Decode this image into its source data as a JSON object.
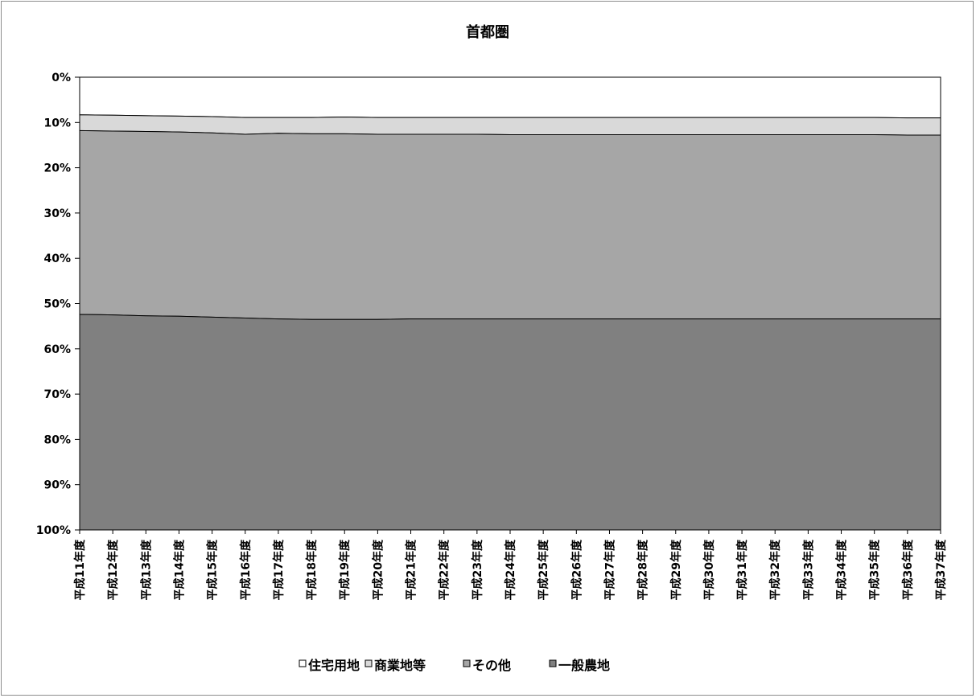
{
  "chart_data": {
    "type": "area",
    "stacked": true,
    "percent": true,
    "title": "首都圏",
    "y_axis": {
      "ticks": [
        "0%",
        "10%",
        "20%",
        "30%",
        "40%",
        "50%",
        "60%",
        "70%",
        "80%",
        "90%",
        "100%"
      ],
      "inverted": true,
      "range": [
        0,
        100
      ]
    },
    "categories": [
      "平成11年度",
      "平成12年度",
      "平成13年度",
      "平成14年度",
      "平成15年度",
      "平成16年度",
      "平成17年度",
      "平成18年度",
      "平成19年度",
      "平成20年度",
      "平成21年度",
      "平成22年度",
      "平成23年度",
      "平成24年度",
      "平成25年度",
      "平成26年度",
      "平成27年度",
      "平成28年度",
      "平成29年度",
      "平成30年度",
      "平成31年度",
      "平成32年度",
      "平成33年度",
      "平成34年度",
      "平成35年度",
      "平成36年度",
      "平成37年度"
    ],
    "series": [
      {
        "name": "住宅用地",
        "color": "#ffffff",
        "values": [
          8.3,
          8.4,
          8.5,
          8.6,
          8.7,
          8.9,
          8.9,
          8.9,
          8.8,
          8.9,
          8.9,
          8.9,
          8.9,
          8.9,
          8.9,
          8.9,
          8.9,
          8.9,
          8.9,
          8.9,
          8.9,
          8.9,
          8.9,
          8.9,
          8.9,
          9.0,
          9.0
        ]
      },
      {
        "name": "商業地等",
        "color": "#d9d9d9",
        "values": [
          3.5,
          3.5,
          3.5,
          3.5,
          3.6,
          3.7,
          3.5,
          3.6,
          3.7,
          3.7,
          3.7,
          3.7,
          3.7,
          3.8,
          3.8,
          3.8,
          3.8,
          3.8,
          3.8,
          3.8,
          3.8,
          3.8,
          3.8,
          3.8,
          3.8,
          3.8,
          3.8
        ]
      },
      {
        "name": "その他",
        "color": "#a6a6a6",
        "values": [
          40.6,
          40.6,
          40.7,
          40.7,
          40.7,
          40.6,
          41.0,
          41.0,
          41.0,
          40.9,
          40.8,
          40.8,
          40.8,
          40.7,
          40.7,
          40.7,
          40.7,
          40.7,
          40.7,
          40.7,
          40.7,
          40.7,
          40.7,
          40.7,
          40.7,
          40.6,
          40.6
        ]
      },
      {
        "name": "一般農地",
        "color": "#808080",
        "values": [
          47.6,
          47.5,
          47.3,
          47.2,
          47.0,
          46.8,
          46.6,
          46.5,
          46.5,
          46.5,
          46.6,
          46.6,
          46.6,
          46.6,
          46.6,
          46.6,
          46.6,
          46.6,
          46.6,
          46.6,
          46.6,
          46.6,
          46.6,
          46.6,
          46.6,
          46.6,
          46.6
        ]
      }
    ],
    "legend": {
      "position": "bottom"
    },
    "grid": false
  }
}
